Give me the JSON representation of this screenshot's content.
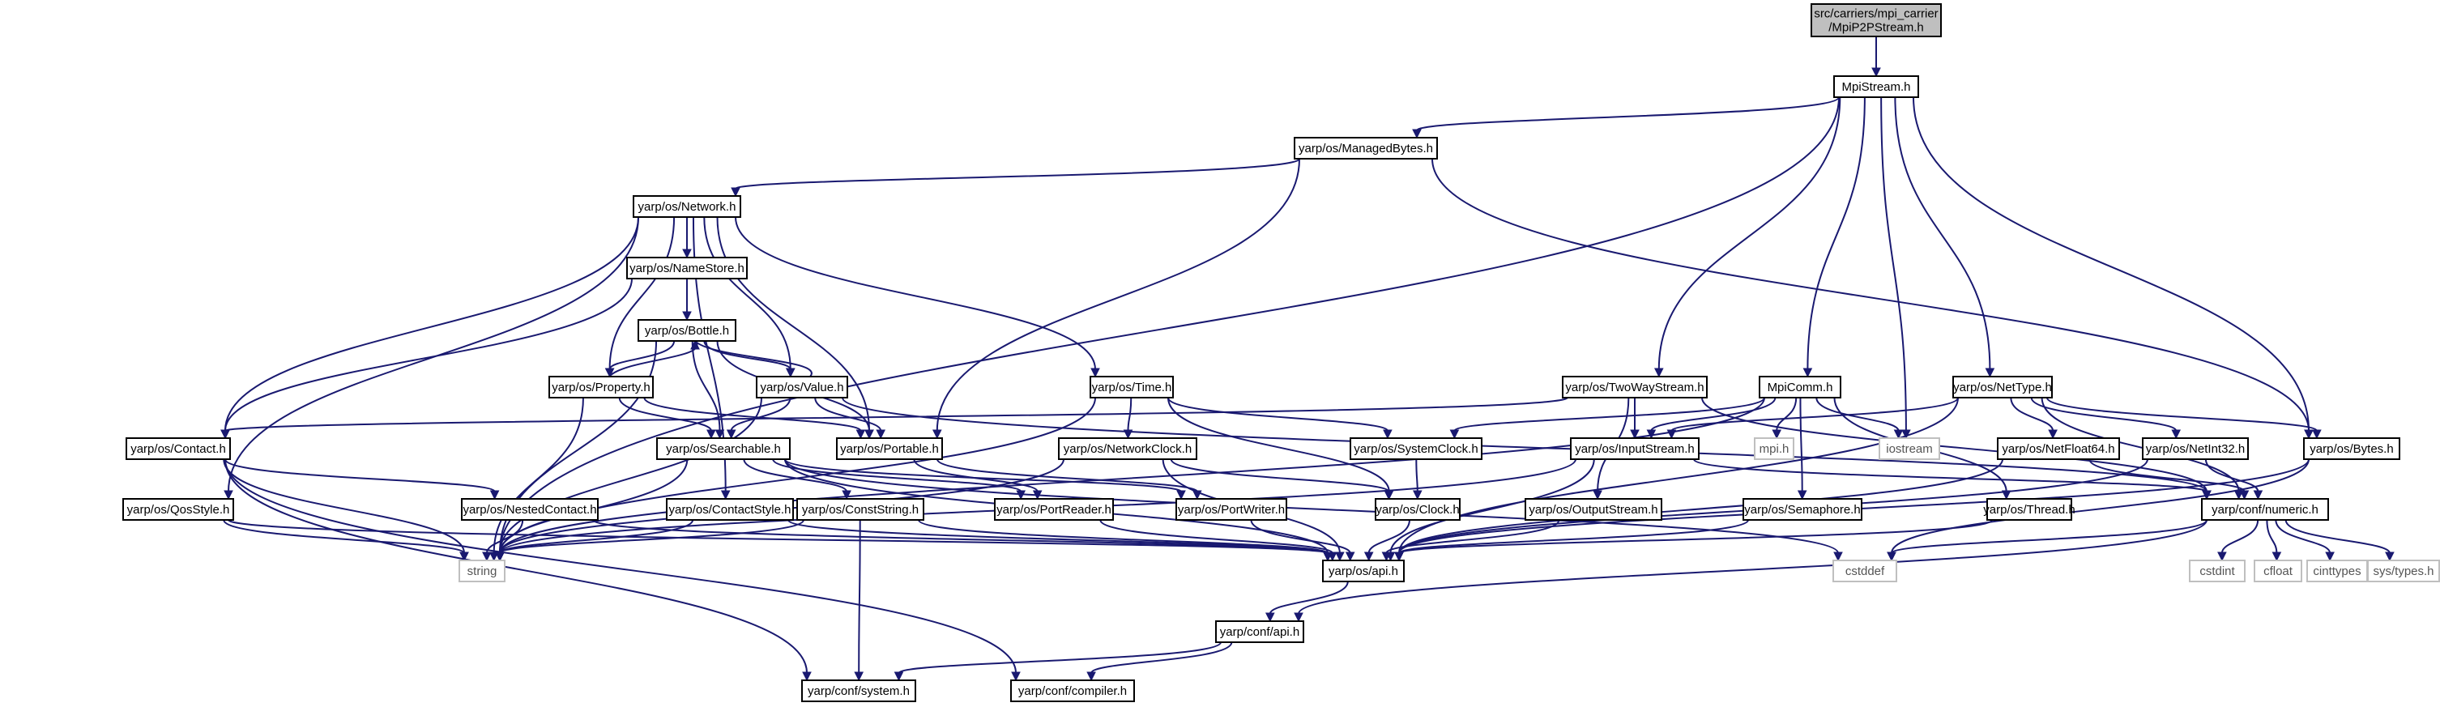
{
  "colors": {
    "edge": "#191970",
    "header_fill": "#bfbfbf",
    "header_stroke": "#000000",
    "node_fill": "#ffffff",
    "node_stroke": "#000000",
    "ext_stroke": "#bfbfbf",
    "text": "#000000",
    "ext_text": "#555555"
  },
  "nodes": [
    {
      "id": "mpip2pstream",
      "lines": [
        "src/carriers/mpi_carrier",
        "/MpiP2PStream.h"
      ],
      "kind": "header"
    },
    {
      "id": "mpistream",
      "lines": [
        "MpiStream.h"
      ],
      "kind": "file"
    },
    {
      "id": "managedbytes",
      "lines": [
        "yarp/os/ManagedBytes.h"
      ],
      "kind": "file"
    },
    {
      "id": "network",
      "lines": [
        "yarp/os/Network.h"
      ],
      "kind": "file"
    },
    {
      "id": "namestore",
      "lines": [
        "yarp/os/NameStore.h"
      ],
      "kind": "file"
    },
    {
      "id": "bottle",
      "lines": [
        "yarp/os/Bottle.h"
      ],
      "kind": "file"
    },
    {
      "id": "property",
      "lines": [
        "yarp/os/Property.h"
      ],
      "kind": "file"
    },
    {
      "id": "value",
      "lines": [
        "yarp/os/Value.h"
      ],
      "kind": "file"
    },
    {
      "id": "time",
      "lines": [
        "yarp/os/Time.h"
      ],
      "kind": "file"
    },
    {
      "id": "twowaystream",
      "lines": [
        "yarp/os/TwoWayStream.h"
      ],
      "kind": "file"
    },
    {
      "id": "mpicomm",
      "lines": [
        "MpiComm.h"
      ],
      "kind": "file"
    },
    {
      "id": "nettype",
      "lines": [
        "yarp/os/NetType.h"
      ],
      "kind": "file"
    },
    {
      "id": "contact",
      "lines": [
        "yarp/os/Contact.h"
      ],
      "kind": "file"
    },
    {
      "id": "searchable",
      "lines": [
        "yarp/os/Searchable.h"
      ],
      "kind": "file"
    },
    {
      "id": "portable",
      "lines": [
        "yarp/os/Portable.h"
      ],
      "kind": "file"
    },
    {
      "id": "networkclock",
      "lines": [
        "yarp/os/NetworkClock.h"
      ],
      "kind": "file"
    },
    {
      "id": "systemclock",
      "lines": [
        "yarp/os/SystemClock.h"
      ],
      "kind": "file"
    },
    {
      "id": "inputstream",
      "lines": [
        "yarp/os/InputStream.h"
      ],
      "kind": "file"
    },
    {
      "id": "mpih",
      "lines": [
        "mpi.h"
      ],
      "kind": "ext"
    },
    {
      "id": "iostream",
      "lines": [
        "iostream"
      ],
      "kind": "ext"
    },
    {
      "id": "netfloat64",
      "lines": [
        "yarp/os/NetFloat64.h"
      ],
      "kind": "file"
    },
    {
      "id": "netint32",
      "lines": [
        "yarp/os/NetInt32.h"
      ],
      "kind": "file"
    },
    {
      "id": "bytes",
      "lines": [
        "yarp/os/Bytes.h"
      ],
      "kind": "file"
    },
    {
      "id": "qosstyle",
      "lines": [
        "yarp/os/QosStyle.h"
      ],
      "kind": "file"
    },
    {
      "id": "nestedcontact",
      "lines": [
        "yarp/os/NestedContact.h"
      ],
      "kind": "file"
    },
    {
      "id": "contactstyle",
      "lines": [
        "yarp/os/ContactStyle.h"
      ],
      "kind": "file"
    },
    {
      "id": "conststring",
      "lines": [
        "yarp/os/ConstString.h"
      ],
      "kind": "file"
    },
    {
      "id": "portreader",
      "lines": [
        "yarp/os/PortReader.h"
      ],
      "kind": "file"
    },
    {
      "id": "portwriter",
      "lines": [
        "yarp/os/PortWriter.h"
      ],
      "kind": "file"
    },
    {
      "id": "clock",
      "lines": [
        "yarp/os/Clock.h"
      ],
      "kind": "file"
    },
    {
      "id": "outputstream",
      "lines": [
        "yarp/os/OutputStream.h"
      ],
      "kind": "file"
    },
    {
      "id": "semaphore",
      "lines": [
        "yarp/os/Semaphore.h"
      ],
      "kind": "file"
    },
    {
      "id": "thread",
      "lines": [
        "yarp/os/Thread.h"
      ],
      "kind": "file"
    },
    {
      "id": "numeric",
      "lines": [
        "yarp/conf/numeric.h"
      ],
      "kind": "file"
    },
    {
      "id": "string",
      "lines": [
        "string"
      ],
      "kind": "ext"
    },
    {
      "id": "osapi",
      "lines": [
        "yarp/os/api.h"
      ],
      "kind": "file"
    },
    {
      "id": "cstddef",
      "lines": [
        "cstddef"
      ],
      "kind": "ext"
    },
    {
      "id": "cstdint",
      "lines": [
        "cstdint"
      ],
      "kind": "ext"
    },
    {
      "id": "cfloat",
      "lines": [
        "cfloat"
      ],
      "kind": "ext"
    },
    {
      "id": "cinttypes",
      "lines": [
        "cinttypes"
      ],
      "kind": "ext"
    },
    {
      "id": "systypes",
      "lines": [
        "sys/types.h"
      ],
      "kind": "ext"
    },
    {
      "id": "confapi",
      "lines": [
        "yarp/conf/api.h"
      ],
      "kind": "file"
    },
    {
      "id": "system",
      "lines": [
        "yarp/conf/system.h"
      ],
      "kind": "file"
    },
    {
      "id": "compiler",
      "lines": [
        "yarp/conf/compiler.h"
      ],
      "kind": "file"
    }
  ],
  "edges": [
    [
      "mpip2pstream",
      "mpistream"
    ],
    [
      "mpistream",
      "managedbytes"
    ],
    [
      "mpistream",
      "twowaystream"
    ],
    [
      "mpistream",
      "mpicomm"
    ],
    [
      "mpistream",
      "nettype"
    ],
    [
      "mpistream",
      "iostream"
    ],
    [
      "mpistream",
      "bytes"
    ],
    [
      "mpistream",
      "string"
    ],
    [
      "managedbytes",
      "network"
    ],
    [
      "managedbytes",
      "portable"
    ],
    [
      "managedbytes",
      "bytes"
    ],
    [
      "network",
      "namestore"
    ],
    [
      "network",
      "property"
    ],
    [
      "network",
      "value"
    ],
    [
      "network",
      "time"
    ],
    [
      "network",
      "contact"
    ],
    [
      "network",
      "portable"
    ],
    [
      "network",
      "qosstyle"
    ],
    [
      "network",
      "contactstyle"
    ],
    [
      "namestore",
      "bottle"
    ],
    [
      "namestore",
      "contact"
    ],
    [
      "bottle",
      "property"
    ],
    [
      "bottle",
      "value"
    ],
    [
      "bottle",
      "searchable"
    ],
    [
      "bottle",
      "portable"
    ],
    [
      "bottle",
      "string"
    ],
    [
      "property",
      "bottle"
    ],
    [
      "property",
      "searchable"
    ],
    [
      "property",
      "portable"
    ],
    [
      "property",
      "string"
    ],
    [
      "value",
      "bottle"
    ],
    [
      "value",
      "searchable"
    ],
    [
      "value",
      "portable"
    ],
    [
      "value",
      "numeric"
    ],
    [
      "value",
      "string"
    ],
    [
      "time",
      "networkclock"
    ],
    [
      "time",
      "systemclock"
    ],
    [
      "time",
      "clock"
    ],
    [
      "time",
      "string"
    ],
    [
      "twowaystream",
      "contact"
    ],
    [
      "twowaystream",
      "inputstream"
    ],
    [
      "twowaystream",
      "outputstream"
    ],
    [
      "twowaystream",
      "numeric"
    ],
    [
      "mpicomm",
      "systemclock"
    ],
    [
      "mpicomm",
      "inputstream"
    ],
    [
      "mpicomm",
      "semaphore"
    ],
    [
      "mpicomm",
      "thread"
    ],
    [
      "mpicomm",
      "mpih"
    ],
    [
      "mpicomm",
      "iostream"
    ],
    [
      "mpicomm",
      "string"
    ],
    [
      "nettype",
      "inputstream"
    ],
    [
      "nettype",
      "netfloat64"
    ],
    [
      "nettype",
      "netint32"
    ],
    [
      "nettype",
      "bytes"
    ],
    [
      "nettype",
      "numeric"
    ],
    [
      "nettype",
      "osapi"
    ],
    [
      "contact",
      "nestedcontact"
    ],
    [
      "contact",
      "string"
    ],
    [
      "contact",
      "system"
    ],
    [
      "contact",
      "compiler"
    ],
    [
      "searchable",
      "conststring"
    ],
    [
      "searchable",
      "portreader"
    ],
    [
      "searchable",
      "portwriter"
    ],
    [
      "searchable",
      "osapi"
    ],
    [
      "searchable",
      "string"
    ],
    [
      "searchable",
      "cstddef"
    ],
    [
      "portable",
      "portreader"
    ],
    [
      "portable",
      "portwriter"
    ],
    [
      "networkclock",
      "clock"
    ],
    [
      "networkclock",
      "osapi"
    ],
    [
      "networkclock",
      "string"
    ],
    [
      "systemclock",
      "clock"
    ],
    [
      "inputstream",
      "numeric"
    ],
    [
      "inputstream",
      "osapi"
    ],
    [
      "inputstream",
      "string"
    ],
    [
      "netfloat64",
      "numeric"
    ],
    [
      "netfloat64",
      "osapi"
    ],
    [
      "netint32",
      "numeric"
    ],
    [
      "netint32",
      "osapi"
    ],
    [
      "bytes",
      "osapi"
    ],
    [
      "bytes",
      "cstddef"
    ],
    [
      "qosstyle",
      "osapi"
    ],
    [
      "qosstyle",
      "string"
    ],
    [
      "nestedcontact",
      "osapi"
    ],
    [
      "nestedcontact",
      "string"
    ],
    [
      "contactstyle",
      "osapi"
    ],
    [
      "contactstyle",
      "string"
    ],
    [
      "conststring",
      "osapi"
    ],
    [
      "conststring",
      "string"
    ],
    [
      "conststring",
      "system"
    ],
    [
      "portreader",
      "osapi"
    ],
    [
      "portwriter",
      "osapi"
    ],
    [
      "clock",
      "osapi"
    ],
    [
      "outputstream",
      "osapi"
    ],
    [
      "semaphore",
      "osapi"
    ],
    [
      "thread",
      "osapi"
    ],
    [
      "numeric",
      "cstddef"
    ],
    [
      "numeric",
      "cstdint"
    ],
    [
      "numeric",
      "cfloat"
    ],
    [
      "numeric",
      "cinttypes"
    ],
    [
      "numeric",
      "systypes"
    ],
    [
      "numeric",
      "confapi"
    ],
    [
      "osapi",
      "confapi"
    ],
    [
      "confapi",
      "system"
    ],
    [
      "confapi",
      "compiler"
    ]
  ]
}
